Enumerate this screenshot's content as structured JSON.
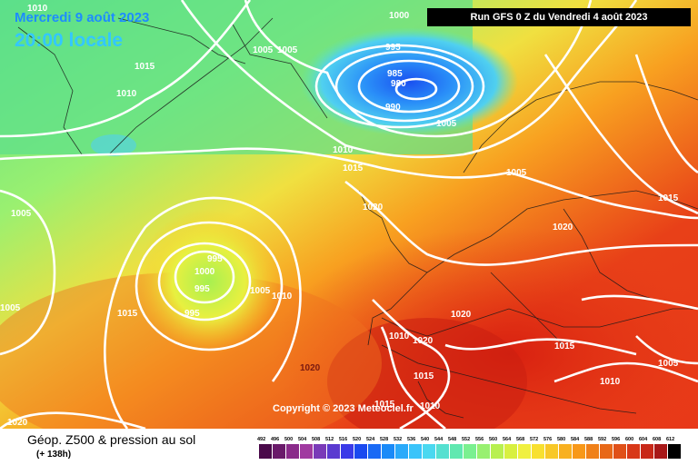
{
  "header": {
    "date": "Mercredi 9 août 2023",
    "time": "20:00 locale",
    "run": "Run GFS 0 Z du Vendredi 4 août 2023"
  },
  "copyright": "Copyright © 2023 Meteociel.fr",
  "footer": {
    "title": "Géop. Z500 & pression au sol",
    "subtitle": "(+ 138h)"
  },
  "map": {
    "isobar_labels": {
      "l1010a": "1010",
      "l1000a": "1000",
      "l1005a": "1005",
      "l1005b": "1005",
      "l995a": "995",
      "l1015a": "1015",
      "l1010b": "1010",
      "l985": "985",
      "l980": "980",
      "l990": "990",
      "l1005c": "1005",
      "l1010c": "1010",
      "l1015b": "1015",
      "l1005d": "1005",
      "l1020a": "1020",
      "l1005e": "1005",
      "l995b": "995",
      "l1000b": "1000",
      "l995c": "995",
      "l995d": "995",
      "l1005f": "1005",
      "l1010d": "1010",
      "l1015c": "1015",
      "l1005g": "1005",
      "l1020b": "1020",
      "l1015d": "1015",
      "l1020c": "1020",
      "l1010e": "1010",
      "l1020d": "1020",
      "l1020e": "1020",
      "l1015e": "1015",
      "l1015f": "1015",
      "l1015g": "1015",
      "l1010f": "1010",
      "l1010g": "1010",
      "l1005h": "1005",
      "l1020f": "1020"
    }
  },
  "legend": {
    "ticks": [
      "492",
      "496",
      "500",
      "504",
      "508",
      "512",
      "516",
      "520",
      "524",
      "528",
      "532",
      "536",
      "540",
      "544",
      "548",
      "552",
      "556",
      "560",
      "564",
      "568",
      "572",
      "576",
      "580",
      "584",
      "588",
      "592",
      "596",
      "600",
      "604",
      "608",
      "612"
    ],
    "colors": [
      "#4a0a4a",
      "#6a1a6a",
      "#8a2a8a",
      "#a03aa0",
      "#7a3ab8",
      "#5a3ad0",
      "#3a3ae8",
      "#1a4af0",
      "#1a6af5",
      "#1a8af8",
      "#2aaafa",
      "#3ac4fa",
      "#4ad8f0",
      "#55e0d0",
      "#60e8b0",
      "#7af090",
      "#98f070",
      "#b8f050",
      "#d8f040",
      "#f0f040",
      "#f8e030",
      "#f8c828",
      "#f8b020",
      "#f89818",
      "#f08018",
      "#e86818",
      "#e05018",
      "#d83818",
      "#c82818",
      "#a81818",
      "#000000"
    ]
  }
}
